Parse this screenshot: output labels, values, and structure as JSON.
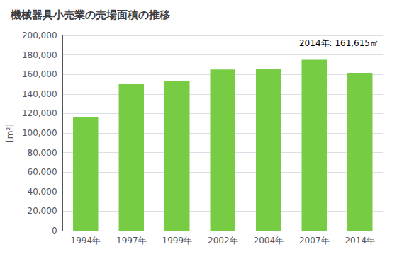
{
  "chart_data": {
    "type": "bar",
    "title": "機械器具小売業の売場面積の推移",
    "ylabel": "[m²]",
    "annotation": "2014年: 161,615㎡",
    "categories": [
      "1994年",
      "1997年",
      "1999年",
      "2002年",
      "2004年",
      "2007年",
      "2014年"
    ],
    "values": [
      116000,
      150500,
      153000,
      165000,
      165500,
      175000,
      161615
    ],
    "color": "#77cc44",
    "ylim": [
      0,
      200000
    ],
    "yticks": [
      0,
      {
        "value": 20000,
        "label": "20,000"
      },
      {
        "value": 40000,
        "label": "40,000"
      },
      {
        "value": 60000,
        "label": "60,000"
      },
      {
        "value": 80000,
        "label": "80,000"
      },
      {
        "value": 100000,
        "label": "100,000"
      },
      {
        "value": 120000,
        "label": "120,000"
      },
      {
        "value": 140000,
        "label": "140,000"
      },
      {
        "value": 160000,
        "label": "160,000"
      },
      {
        "value": 180000,
        "label": "180,000"
      },
      {
        "value": 200000,
        "label": "200,000"
      }
    ],
    "grid": true
  }
}
